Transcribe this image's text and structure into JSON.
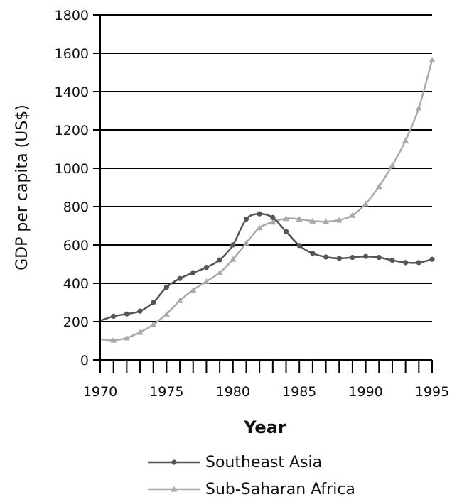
{
  "chart_data": {
    "type": "line",
    "xlabel": "Year",
    "ylabel": "GDP per capita (US$)",
    "xlim": [
      1970,
      1995
    ],
    "ylim": [
      0,
      1800
    ],
    "x_ticks": [
      1970,
      1975,
      1980,
      1985,
      1990,
      1995
    ],
    "y_ticks": [
      0,
      200,
      400,
      600,
      800,
      1000,
      1200,
      1400,
      1600,
      1800
    ],
    "grid": "horizontal",
    "legend_position": "bottom",
    "x": [
      1970,
      1971,
      1972,
      1973,
      1974,
      1975,
      1976,
      1977,
      1978,
      1979,
      1980,
      1981,
      1982,
      1983,
      1984,
      1985,
      1986,
      1987,
      1988,
      1989,
      1990,
      1991,
      1992,
      1993,
      1994,
      1995
    ],
    "series": [
      {
        "name": "Southeast Asia",
        "color": "#555555",
        "marker": "circle",
        "values": [
          205,
          228,
          240,
          255,
          300,
          380,
          425,
          455,
          483,
          522,
          600,
          735,
          762,
          743,
          670,
          597,
          556,
          537,
          530,
          535,
          540,
          535,
          520,
          508,
          508,
          525
        ]
      },
      {
        "name": "Sub-Saharan Africa",
        "color": "#aaaaaa",
        "marker": "triangle",
        "values": [
          108,
          103,
          115,
          145,
          185,
          240,
          310,
          365,
          410,
          455,
          525,
          610,
          690,
          720,
          738,
          735,
          725,
          722,
          730,
          755,
          815,
          905,
          1015,
          1145,
          1315,
          1565
        ]
      }
    ]
  }
}
